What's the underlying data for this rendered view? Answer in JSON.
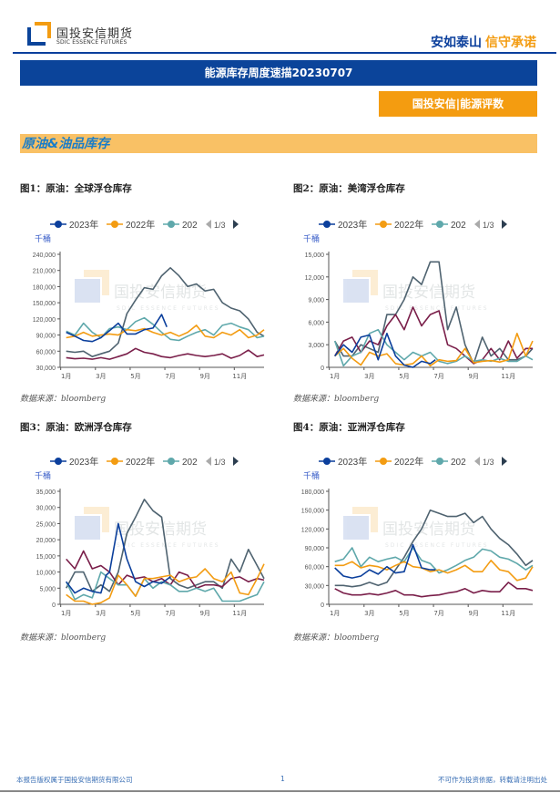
{
  "header": {
    "logo_cn": "国投安信期货",
    "logo_en": "SDIC ESSENCE FUTURES",
    "slogan_a": "安如泰山",
    "slogan_b": "信守承诺",
    "brand_blue": "#0b449a",
    "brand_orange": "#f49c10"
  },
  "title": "能源库存周度速描20230707",
  "tag": "国投安信|能源评数",
  "section": "原油&油品库存",
  "legend": {
    "items": [
      "2023年",
      "2022年",
      "202"
    ],
    "pager": "1/3"
  },
  "watermark": {
    "cn": "国投安信期货",
    "en": "SDIC ESSENCE FUTURES"
  },
  "footer": {
    "left": "本报告版权属于国投安信期货有限公司",
    "page": "1",
    "right": "不可作为投资依据，转载请注明出处"
  },
  "chart_data": [
    {
      "type": "line",
      "title": "图1：原油：全球浮仓库存",
      "source": "数据来源：bloomberg",
      "unit": "千桶",
      "ylim": [
        30000,
        240000
      ],
      "yticks": [
        30000,
        60000,
        90000,
        120000,
        150000,
        180000,
        210000,
        240000
      ],
      "xticks": [
        {
          "m": 1,
          "label": "1月"
        },
        {
          "m": 3,
          "label": "3月"
        },
        {
          "m": 5,
          "label": "5月"
        },
        {
          "m": 7,
          "label": "7月"
        },
        {
          "m": 9,
          "label": "9月"
        },
        {
          "m": 11,
          "label": "11月"
        }
      ],
      "x": [
        1,
        1.5,
        2,
        2.5,
        3,
        3.5,
        4,
        4.5,
        5,
        5.5,
        6,
        6.5,
        7,
        7.5,
        8,
        8.5,
        9,
        9.5,
        10,
        10.5,
        11,
        11.5,
        12,
        12.4
      ],
      "series": [
        {
          "color": "#4f6370",
          "values": [
            60000,
            58000,
            60000,
            50000,
            55000,
            60000,
            75000,
            130000,
            155000,
            178000,
            175000,
            200000,
            215000,
            200000,
            180000,
            185000,
            172000,
            175000,
            150000,
            140000,
            135000,
            120000,
            95000,
            88000
          ]
        },
        {
          "color": "#7a1f4a",
          "values": [
            48000,
            46000,
            47000,
            45000,
            48000,
            45000,
            50000,
            55000,
            65000,
            58000,
            55000,
            50000,
            48000,
            52000,
            55000,
            52000,
            50000,
            52000,
            55000,
            47000,
            52000,
            62000,
            50000,
            53000
          ]
        },
        {
          "name": "202",
          "color": "#5fa8ab",
          "values": [
            97000,
            90000,
            112000,
            95000,
            85000,
            102000,
            105000,
            100000,
            115000,
            122000,
            110000,
            95000,
            82000,
            80000,
            88000,
            95000,
            100000,
            90000,
            108000,
            112000,
            105000,
            100000,
            85000,
            88000
          ]
        },
        {
          "name": "2022年",
          "color": "#f39c12",
          "values": [
            85000,
            88000,
            95000,
            88000,
            90000,
            92000,
            90000,
            100000,
            98000,
            102000,
            95000,
            90000,
            95000,
            88000,
            95000,
            108000,
            88000,
            85000,
            95000,
            90000,
            100000,
            85000,
            90000,
            100000
          ]
        },
        {
          "name": "2023年",
          "color": "#0b3f9c",
          "x": [
            1,
            1.5,
            2,
            2.5,
            3,
            3.5,
            4,
            4.5,
            5,
            5.5,
            6,
            6.5,
            6.8
          ],
          "values": [
            95000,
            88000,
            80000,
            78000,
            85000,
            98000,
            112000,
            92000,
            92000,
            100000,
            103000,
            128000,
            105000
          ]
        }
      ]
    },
    {
      "type": "line",
      "title": "图2：原油：美湾浮仓库存",
      "source": "数据来源：bloomberg",
      "unit": "千桶",
      "ylim": [
        0,
        15000
      ],
      "yticks": [
        0,
        3000,
        6000,
        9000,
        12000,
        15000
      ],
      "xticks": [
        {
          "m": 1,
          "label": "1月"
        },
        {
          "m": 3,
          "label": "3月"
        },
        {
          "m": 5,
          "label": "5月"
        },
        {
          "m": 7,
          "label": "7月"
        },
        {
          "m": 9,
          "label": "9月"
        },
        {
          "m": 11,
          "label": "11月"
        }
      ],
      "x": [
        1,
        1.5,
        2,
        2.5,
        3,
        3.5,
        4,
        4.5,
        5,
        5.5,
        6,
        6.5,
        7,
        7.5,
        8,
        8.5,
        9,
        9.5,
        10,
        10.5,
        11,
        11.5,
        12,
        12.4
      ],
      "series": [
        {
          "color": "#4f6370",
          "values": [
            3500,
            1500,
            1500,
            3000,
            2500,
            2000,
            7000,
            7000,
            9000,
            12000,
            11000,
            14000,
            14000,
            5000,
            8000,
            3000,
            500,
            4000,
            1500,
            2500,
            1000,
            1000,
            1500,
            2500
          ]
        },
        {
          "color": "#7a1f4a",
          "values": [
            1500,
            3500,
            4000,
            2000,
            3500,
            3000,
            5500,
            7000,
            5000,
            8000,
            5500,
            7000,
            7500,
            3000,
            2500,
            1500,
            500,
            1000,
            2500,
            1000,
            3500,
            1200,
            2500,
            2500
          ]
        },
        {
          "name": "202",
          "color": "#5fa8ab",
          "values": [
            3500,
            200,
            1500,
            2000,
            4500,
            5000,
            3000,
            2000,
            1000,
            2000,
            1500,
            2000,
            800,
            500,
            800,
            1500,
            800,
            1000,
            800,
            1200,
            800,
            800,
            1500,
            1000
          ]
        },
        {
          "name": "2022年",
          "color": "#f39c12",
          "values": [
            1500,
            2500,
            1200,
            300,
            2000,
            1500,
            1800,
            500,
            300,
            500,
            1500,
            200,
            1000,
            800,
            900,
            2500,
            600,
            800,
            900,
            700,
            1000,
            4500,
            1500,
            3500
          ]
        },
        {
          "name": "2023年",
          "color": "#0b3f9c",
          "x": [
            1,
            1.5,
            2,
            2.5,
            3,
            3.5,
            4,
            4.5,
            5,
            5.5,
            6,
            6.5,
            6.8
          ],
          "values": [
            1500,
            3000,
            2000,
            4000,
            4300,
            1000,
            4500,
            1500,
            300,
            0,
            800,
            500,
            1000
          ]
        }
      ]
    },
    {
      "type": "line",
      "title": "图3：原油：欧洲浮仓库存",
      "source": "数据来源：bloomberg",
      "unit": "千桶",
      "ylim": [
        0,
        35000
      ],
      "yticks": [
        0,
        5000,
        10000,
        15000,
        20000,
        25000,
        30000,
        35000
      ],
      "xticks": [
        {
          "m": 1,
          "label": "1月"
        },
        {
          "m": 3,
          "label": "3月"
        },
        {
          "m": 5,
          "label": "5月"
        },
        {
          "m": 7,
          "label": "7月"
        },
        {
          "m": 9,
          "label": "9月"
        },
        {
          "m": 11,
          "label": "11月"
        }
      ],
      "x": [
        1,
        1.5,
        2,
        2.5,
        3,
        3.5,
        4,
        4.5,
        5,
        5.5,
        6,
        6.5,
        7,
        7.5,
        8,
        8.5,
        9,
        9.5,
        10,
        10.5,
        11,
        11.5,
        12,
        12.4
      ],
      "series": [
        {
          "color": "#4f6370",
          "values": [
            5000,
            10000,
            10000,
            4000,
            6000,
            4000,
            10000,
            22000,
            27000,
            32500,
            29000,
            27000,
            8000,
            6000,
            5000,
            6000,
            7000,
            7000,
            5000,
            14000,
            10000,
            17000,
            12000,
            8000
          ]
        },
        {
          "color": "#7a1f4a",
          "values": [
            14000,
            11000,
            16500,
            11000,
            12000,
            10000,
            6000,
            9000,
            8000,
            8500,
            7000,
            8000,
            6000,
            10000,
            9000,
            5000,
            6000,
            6000,
            5500,
            8000,
            8500,
            7000,
            8000,
            7500
          ]
        },
        {
          "name": "202",
          "color": "#5fa8ab",
          "values": [
            7000,
            1500,
            3000,
            2000,
            10000,
            8000,
            6000,
            6000,
            2500,
            8000,
            5000,
            7000,
            6000,
            4000,
            4000,
            5000,
            4000,
            5000,
            1000,
            1000,
            1000,
            2000,
            3000,
            7000
          ]
        },
        {
          "name": "2022年",
          "color": "#f39c12",
          "values": [
            3000,
            1000,
            1000,
            0,
            500,
            2000,
            9000,
            6000,
            2500,
            8000,
            8000,
            8500,
            9000,
            7000,
            8000,
            8500,
            11000,
            8000,
            7000,
            10000,
            3500,
            3000,
            8000,
            12500
          ]
        },
        {
          "name": "2023年",
          "color": "#0b3f9c",
          "x": [
            1,
            1.5,
            2,
            2.5,
            3,
            3.3,
            3.5,
            4,
            4.5,
            5,
            5.5,
            6,
            6.5,
            7
          ],
          "values": [
            7000,
            3500,
            5000,
            4000,
            3500,
            9000,
            10000,
            25000,
            14000,
            7000,
            5500,
            7000,
            6500,
            8500
          ]
        }
      ]
    },
    {
      "type": "line",
      "title": "图4：原油：亚洲浮仓库存",
      "source": "数据来源：bloomberg",
      "unit": "千桶",
      "ylim": [
        0,
        180000
      ],
      "yticks": [
        0,
        30000,
        60000,
        90000,
        120000,
        150000,
        180000
      ],
      "xticks": [
        {
          "m": 1,
          "label": "1月"
        },
        {
          "m": 3,
          "label": "3月"
        },
        {
          "m": 5,
          "label": "5月"
        },
        {
          "m": 7,
          "label": "7月"
        },
        {
          "m": 9,
          "label": "9月"
        },
        {
          "m": 11,
          "label": "11月"
        }
      ],
      "x": [
        1,
        1.5,
        2,
        2.5,
        3,
        3.5,
        4,
        4.5,
        5,
        5.5,
        6,
        6.5,
        7,
        7.5,
        8,
        8.5,
        9,
        9.5,
        10,
        10.5,
        11,
        11.5,
        12,
        12.4
      ],
      "series": [
        {
          "color": "#4f6370",
          "values": [
            30000,
            30000,
            28000,
            30000,
            35000,
            30000,
            35000,
            55000,
            75000,
            100000,
            120000,
            150000,
            145000,
            140000,
            140000,
            145000,
            130000,
            140000,
            120000,
            105000,
            95000,
            80000,
            62000,
            70000
          ]
        },
        {
          "color": "#7a1f4a",
          "values": [
            25000,
            18000,
            15000,
            15000,
            17000,
            15000,
            18000,
            22000,
            15000,
            15000,
            12000,
            14000,
            15000,
            18000,
            20000,
            25000,
            18000,
            22000,
            20000,
            20000,
            35000,
            25000,
            25000,
            22000
          ]
        },
        {
          "name": "202",
          "color": "#5fa8ab",
          "values": [
            68000,
            72000,
            90000,
            60000,
            75000,
            68000,
            72000,
            75000,
            68000,
            90000,
            70000,
            65000,
            50000,
            55000,
            62000,
            70000,
            75000,
            88000,
            85000,
            75000,
            72000,
            65000,
            55000,
            62000
          ]
        },
        {
          "name": "2022年",
          "color": "#f39c12",
          "values": [
            62000,
            62000,
            68000,
            58000,
            62000,
            60000,
            55000,
            62000,
            68000,
            60000,
            58000,
            52000,
            55000,
            50000,
            55000,
            62000,
            52000,
            52000,
            70000,
            55000,
            52000,
            38000,
            42000,
            60000
          ]
        },
        {
          "name": "2023年",
          "color": "#0b3f9c",
          "x": [
            1,
            1.5,
            2,
            2.5,
            3,
            3.5,
            4,
            4.5,
            5,
            5.5,
            6,
            6.5,
            6.8
          ],
          "values": [
            58000,
            45000,
            42000,
            45000,
            55000,
            48000,
            60000,
            50000,
            52000,
            95000,
            58000,
            55000,
            55000
          ]
        }
      ]
    }
  ]
}
